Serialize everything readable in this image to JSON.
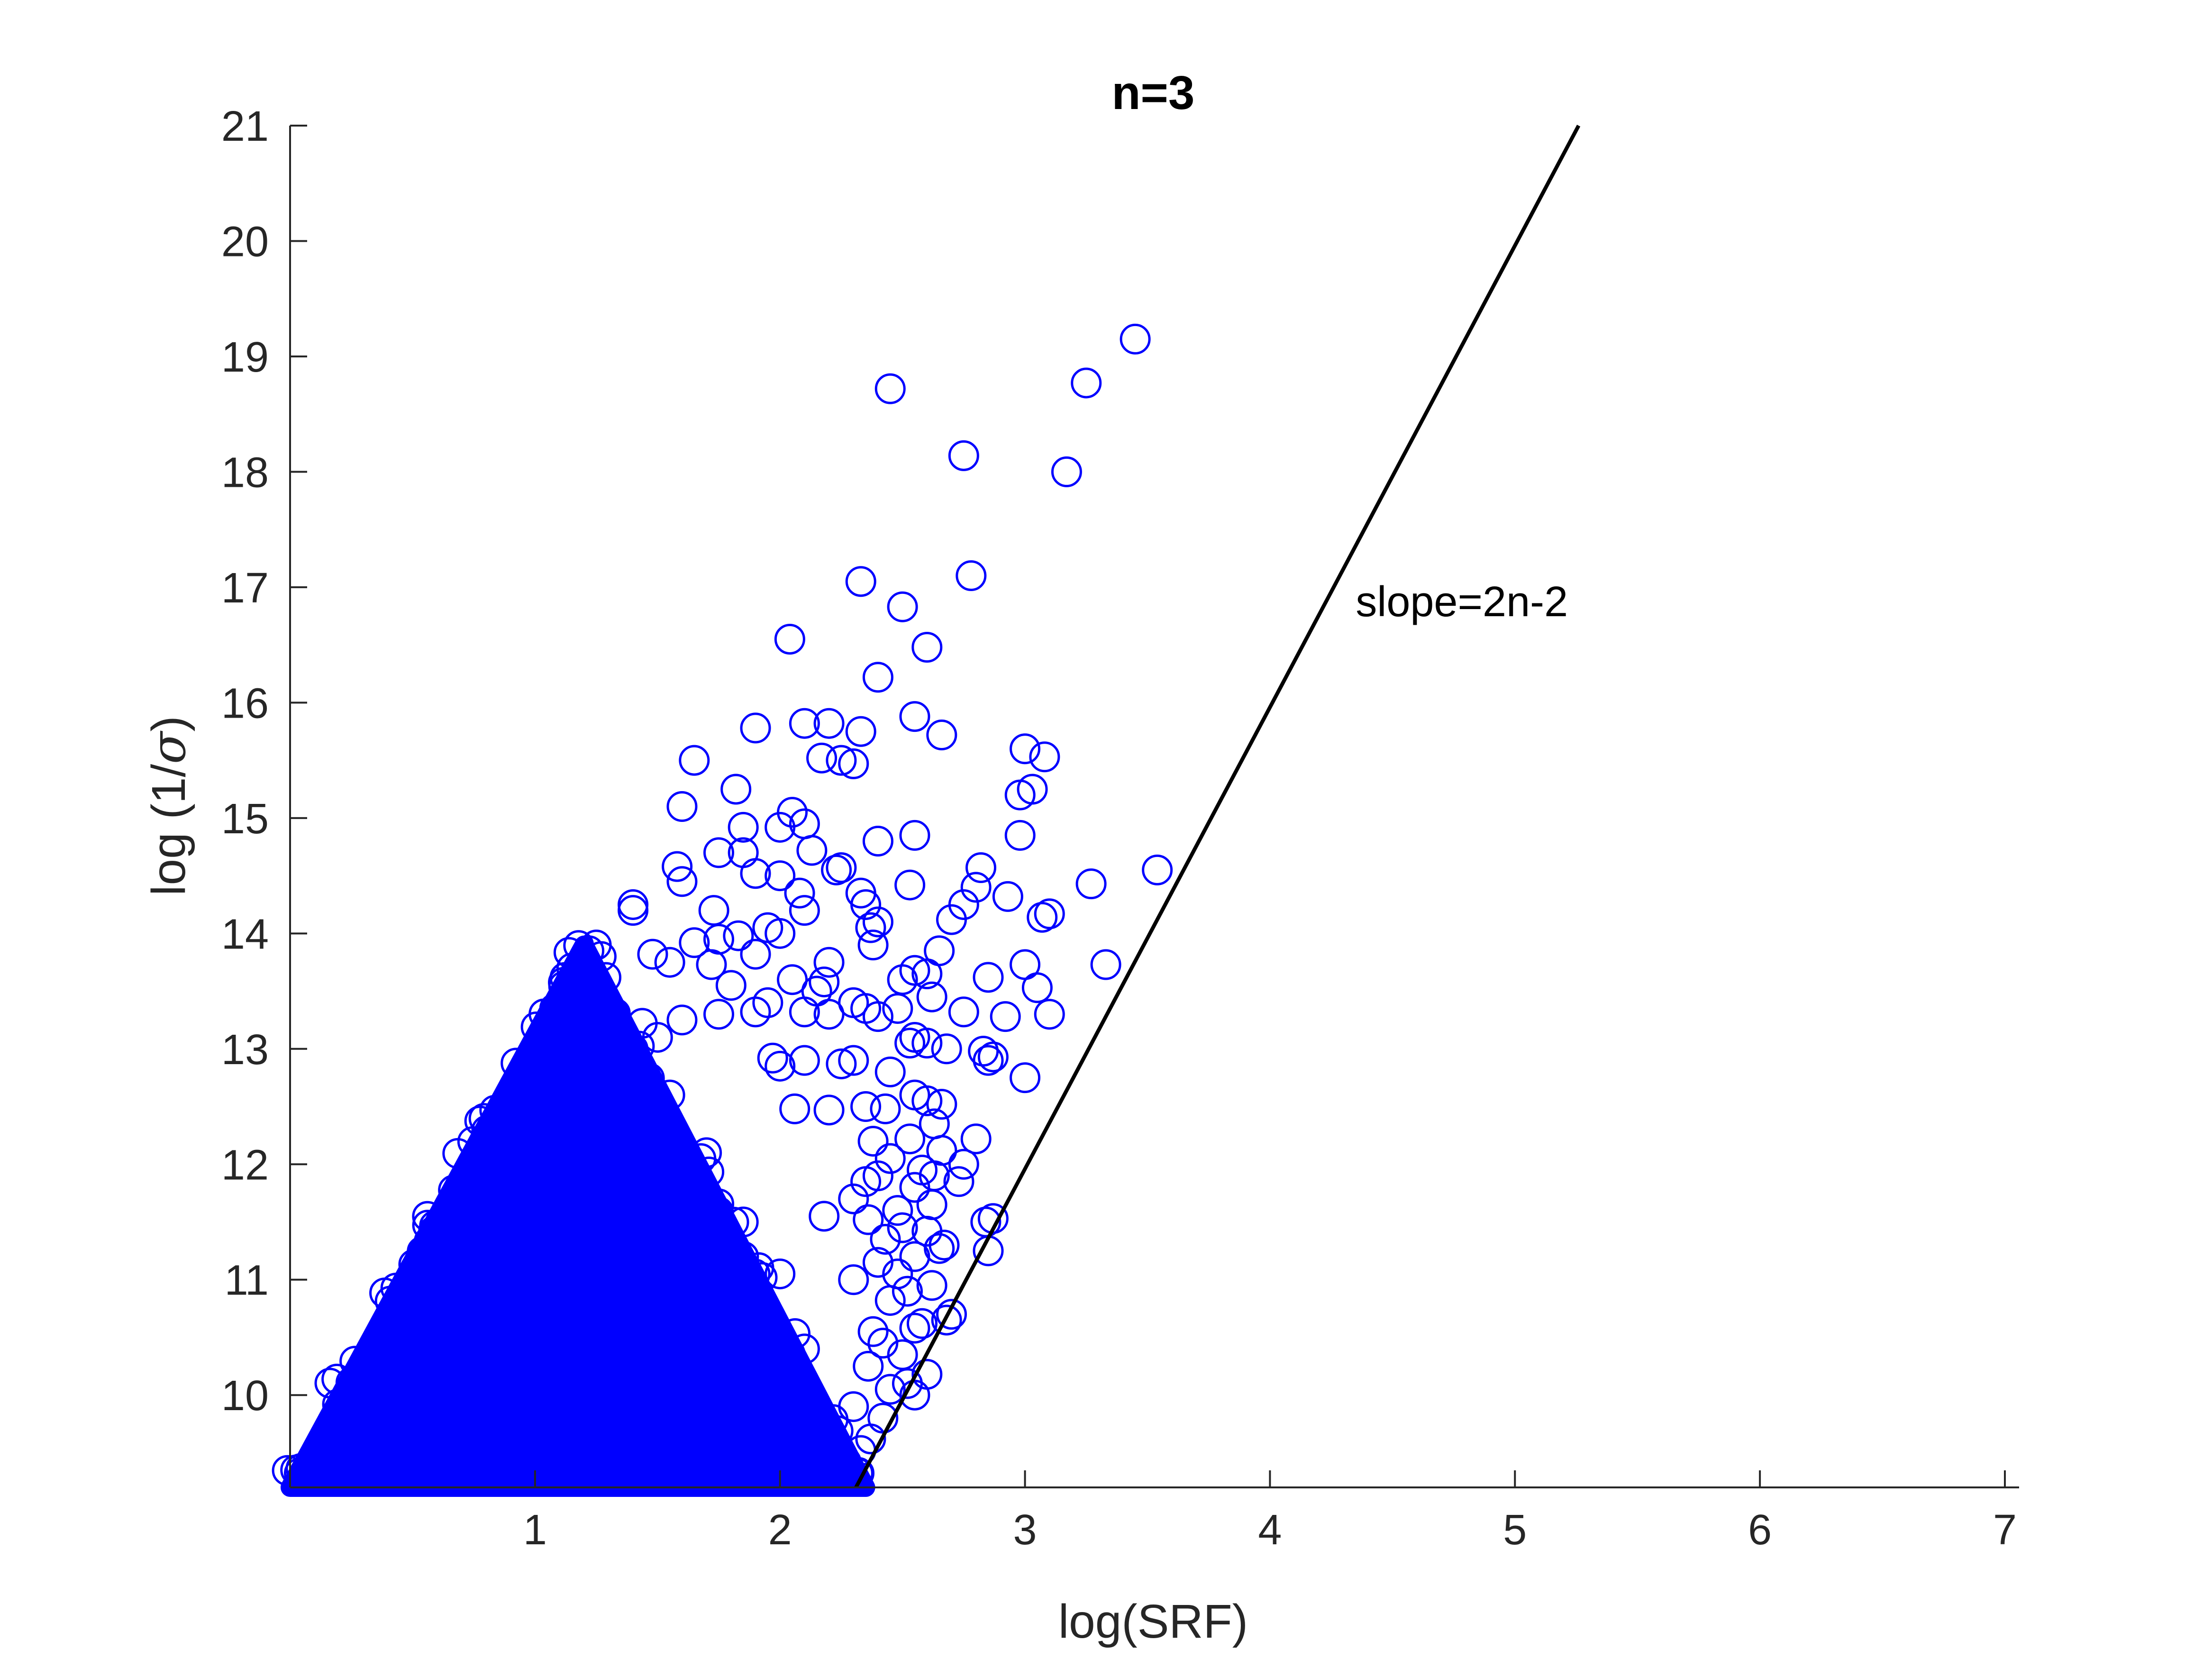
{
  "chart_data": {
    "type": "scatter",
    "title": "n=3",
    "xlabel": "log(SRF)",
    "ylabel_prefix": "log (1/",
    "ylabel_symbol": "σ",
    "ylabel_suffix": ")",
    "xlim": [
      0,
      7
    ],
    "ylim": [
      9.2,
      21
    ],
    "x_ticks": [
      "1",
      "2",
      "3",
      "4",
      "5",
      "6",
      "7"
    ],
    "y_ticks": [
      "10",
      "11",
      "12",
      "13",
      "14",
      "15",
      "16",
      "17",
      "18",
      "19",
      "20",
      "21"
    ],
    "marker": "circle-open",
    "marker_color": "#0000ff",
    "line_color": "#000000",
    "reference_line": {
      "label": "slope=2n-2",
      "slope": 4,
      "points": [
        [
          2.31,
          9.2
        ],
        [
          5.26,
          21.0
        ]
      ]
    },
    "annotation": {
      "text": "slope=2n-2",
      "x": 4.35,
      "y": 16.75
    },
    "dense_region_description": "thousands of overlapping markers filling the triangle bounded by (0, 9.2), (1.2, 13.9), (2.35, 9.2)",
    "series": [
      {
        "points": [
          [
            3.45,
            19.15
          ],
          [
            2.45,
            18.72
          ],
          [
            3.25,
            18.77
          ],
          [
            2.75,
            18.14
          ],
          [
            3.17,
            18.0
          ],
          [
            2.78,
            17.1
          ],
          [
            2.33,
            17.05
          ],
          [
            2.5,
            16.83
          ],
          [
            2.04,
            16.55
          ],
          [
            2.6,
            16.48
          ],
          [
            2.4,
            16.22
          ],
          [
            2.55,
            15.88
          ],
          [
            2.2,
            15.82
          ],
          [
            2.1,
            15.82
          ],
          [
            1.9,
            15.78
          ],
          [
            2.33,
            15.75
          ],
          [
            2.66,
            15.72
          ],
          [
            3.0,
            15.6
          ],
          [
            3.08,
            15.53
          ],
          [
            2.17,
            15.52
          ],
          [
            2.25,
            15.5
          ],
          [
            1.65,
            15.5
          ],
          [
            2.3,
            15.47
          ],
          [
            3.03,
            15.25
          ],
          [
            2.98,
            15.2
          ],
          [
            1.82,
            15.25
          ],
          [
            1.6,
            15.1
          ],
          [
            2.05,
            15.05
          ],
          [
            2.1,
            14.95
          ],
          [
            1.85,
            14.92
          ],
          [
            2.0,
            14.92
          ],
          [
            2.55,
            14.85
          ],
          [
            2.98,
            14.85
          ],
          [
            2.4,
            14.8
          ],
          [
            1.75,
            14.7
          ],
          [
            2.13,
            14.72
          ],
          [
            1.85,
            14.7
          ],
          [
            3.54,
            14.55
          ],
          [
            2.82,
            14.57
          ],
          [
            2.25,
            14.57
          ],
          [
            2.23,
            14.55
          ],
          [
            1.58,
            14.58
          ],
          [
            2.0,
            14.5
          ],
          [
            1.9,
            14.52
          ],
          [
            1.6,
            14.45
          ],
          [
            3.27,
            14.43
          ],
          [
            2.53,
            14.42
          ],
          [
            2.8,
            14.4
          ],
          [
            2.33,
            14.35
          ],
          [
            2.08,
            14.35
          ],
          [
            2.93,
            14.32
          ],
          [
            2.35,
            14.25
          ],
          [
            2.75,
            14.25
          ],
          [
            3.1,
            14.17
          ],
          [
            3.07,
            14.14
          ],
          [
            1.73,
            14.2
          ],
          [
            2.1,
            14.2
          ],
          [
            1.4,
            14.25
          ],
          [
            1.4,
            14.2
          ],
          [
            2.4,
            14.1
          ],
          [
            2.37,
            14.05
          ],
          [
            2.7,
            14.12
          ],
          [
            1.95,
            14.05
          ],
          [
            2.0,
            14.0
          ],
          [
            1.83,
            13.98
          ],
          [
            1.75,
            13.95
          ],
          [
            1.65,
            13.92
          ],
          [
            2.38,
            13.9
          ],
          [
            2.65,
            13.85
          ],
          [
            1.25,
            13.9
          ],
          [
            1.22,
            13.85
          ],
          [
            1.27,
            13.8
          ],
          [
            1.48,
            13.82
          ],
          [
            1.9,
            13.82
          ],
          [
            3.33,
            13.73
          ],
          [
            3.0,
            13.73
          ],
          [
            2.2,
            13.75
          ],
          [
            1.55,
            13.75
          ],
          [
            1.72,
            13.73
          ],
          [
            1.15,
            13.7
          ],
          [
            2.55,
            13.68
          ],
          [
            2.6,
            13.65
          ],
          [
            2.85,
            13.62
          ],
          [
            2.5,
            13.6
          ],
          [
            2.05,
            13.6
          ],
          [
            2.18,
            13.58
          ],
          [
            1.8,
            13.55
          ],
          [
            3.05,
            13.53
          ],
          [
            2.15,
            13.5
          ],
          [
            2.62,
            13.45
          ],
          [
            1.95,
            13.4
          ],
          [
            2.3,
            13.4
          ],
          [
            2.48,
            13.35
          ],
          [
            2.75,
            13.32
          ],
          [
            3.1,
            13.3
          ],
          [
            2.92,
            13.28
          ],
          [
            2.35,
            13.35
          ],
          [
            2.4,
            13.28
          ],
          [
            2.1,
            13.32
          ],
          [
            2.2,
            13.3
          ],
          [
            1.9,
            13.32
          ],
          [
            1.6,
            13.25
          ],
          [
            1.75,
            13.3
          ],
          [
            2.55,
            13.1
          ],
          [
            2.6,
            13.05
          ],
          [
            2.68,
            13.0
          ],
          [
            2.83,
            12.98
          ],
          [
            2.87,
            12.93
          ],
          [
            2.85,
            12.9
          ],
          [
            2.53,
            13.05
          ],
          [
            2.3,
            12.9
          ],
          [
            2.25,
            12.87
          ],
          [
            2.1,
            12.9
          ],
          [
            1.97,
            12.92
          ],
          [
            2.0,
            12.85
          ],
          [
            3.0,
            12.75
          ],
          [
            2.45,
            12.8
          ],
          [
            2.55,
            12.6
          ],
          [
            2.6,
            12.55
          ],
          [
            2.66,
            12.52
          ],
          [
            2.35,
            12.5
          ],
          [
            2.43,
            12.48
          ],
          [
            2.2,
            12.47
          ],
          [
            2.06,
            12.48
          ],
          [
            2.63,
            12.35
          ],
          [
            2.53,
            12.22
          ],
          [
            2.8,
            12.22
          ],
          [
            2.66,
            12.12
          ],
          [
            2.38,
            12.2
          ],
          [
            2.45,
            12.05
          ],
          [
            2.75,
            12.0
          ],
          [
            2.58,
            11.95
          ],
          [
            2.63,
            11.9
          ],
          [
            2.4,
            11.9
          ],
          [
            2.35,
            11.85
          ],
          [
            2.73,
            11.85
          ],
          [
            2.55,
            11.8
          ],
          [
            2.3,
            11.7
          ],
          [
            2.62,
            11.65
          ],
          [
            2.48,
            11.6
          ],
          [
            2.5,
            11.45
          ],
          [
            2.36,
            11.52
          ],
          [
            2.87,
            11.53
          ],
          [
            2.84,
            11.5
          ],
          [
            2.18,
            11.55
          ],
          [
            2.6,
            11.42
          ],
          [
            2.43,
            11.35
          ],
          [
            2.67,
            11.3
          ],
          [
            2.65,
            11.27
          ],
          [
            2.85,
            11.25
          ],
          [
            2.55,
            11.2
          ],
          [
            2.4,
            11.15
          ],
          [
            2.48,
            11.05
          ],
          [
            2.3,
            11.0
          ],
          [
            2.52,
            10.9
          ],
          [
            2.62,
            10.95
          ],
          [
            2.45,
            10.82
          ],
          [
            2.7,
            10.7
          ],
          [
            2.68,
            10.65
          ],
          [
            2.58,
            10.62
          ],
          [
            2.55,
            10.58
          ],
          [
            2.38,
            10.55
          ],
          [
            2.42,
            10.45
          ],
          [
            2.5,
            10.35
          ],
          [
            2.36,
            10.25
          ],
          [
            2.6,
            10.18
          ],
          [
            2.52,
            10.1
          ],
          [
            2.45,
            10.05
          ],
          [
            2.55,
            10.0
          ],
          [
            2.3,
            9.9
          ],
          [
            2.42,
            9.8
          ],
          [
            2.37,
            9.62
          ],
          [
            2.33,
            9.52
          ],
          [
            2.27,
            9.42
          ],
          [
            2.32,
            9.33
          ],
          [
            2.23,
            9.25
          ],
          [
            2.18,
            9.7
          ],
          [
            2.1,
            10.4
          ],
          [
            2.0,
            11.05
          ],
          [
            1.85,
            11.5
          ],
          [
            1.7,
            12.1
          ],
          [
            1.55,
            12.6
          ],
          [
            1.4,
            13.0
          ],
          [
            1.3,
            13.3
          ],
          [
            1.2,
            13.55
          ],
          [
            1.12,
            13.45
          ],
          [
            1.05,
            13.2
          ],
          [
            1.08,
            13.35
          ],
          [
            1.35,
            13.15
          ],
          [
            1.5,
            13.1
          ]
        ]
      }
    ]
  }
}
